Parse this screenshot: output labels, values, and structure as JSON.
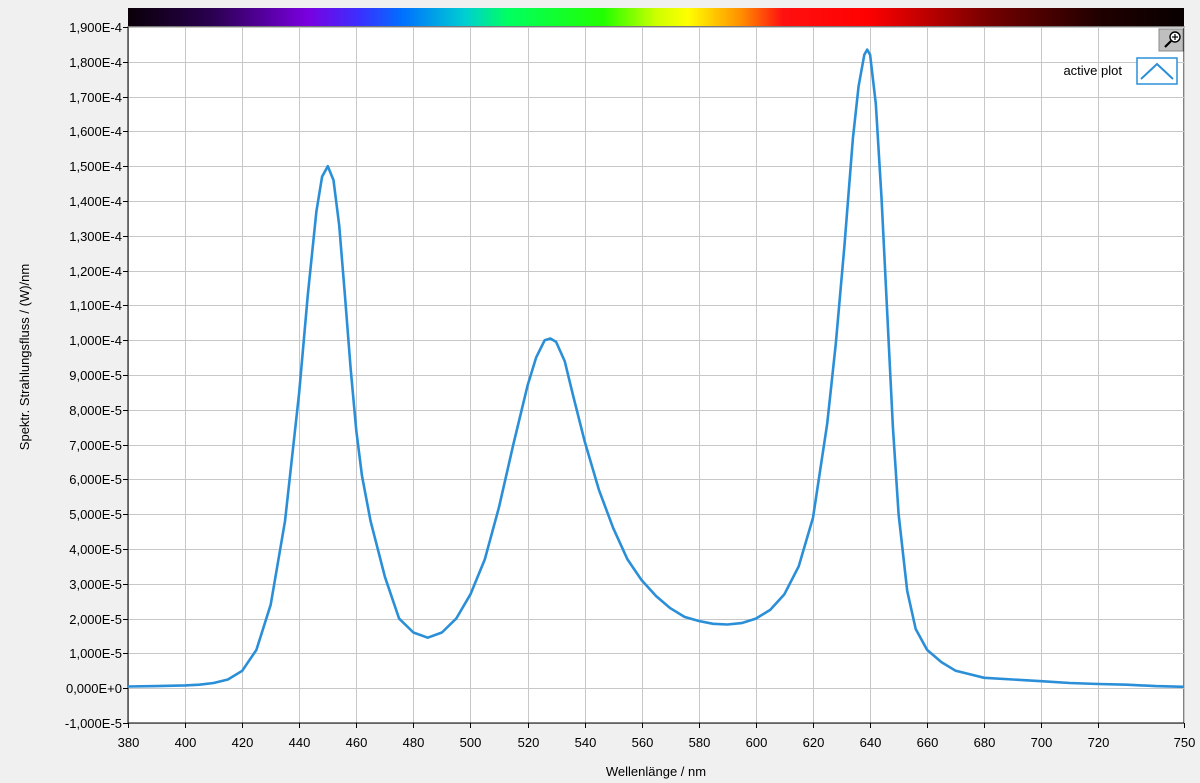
{
  "chart_data": {
    "type": "line",
    "xlabel": "Wellenlänge / nm",
    "ylabel": "Spektr. Strahlungsfluss / (W)/nm",
    "xlim": [
      380,
      750
    ],
    "ylim": [
      -1e-05,
      0.00019
    ],
    "x_ticks": [
      380,
      400,
      420,
      440,
      460,
      480,
      500,
      520,
      540,
      560,
      580,
      600,
      620,
      640,
      660,
      680,
      700,
      720,
      750
    ],
    "x_tick_labels": [
      "380",
      "400",
      "420",
      "440",
      "460",
      "480",
      "500",
      "520",
      "540",
      "560",
      "580",
      "600",
      "620",
      "640",
      "660",
      "680",
      "700",
      "720",
      "750"
    ],
    "y_ticks": [
      -1e-05,
      0,
      1e-05,
      2e-05,
      3e-05,
      4e-05,
      5e-05,
      6e-05,
      7e-05,
      8e-05,
      9e-05,
      0.0001,
      0.00011,
      0.00012,
      0.00013,
      0.00014,
      0.00015,
      0.00016,
      0.00017,
      0.00018,
      0.00019
    ],
    "y_tick_labels": [
      "-1,000E-5",
      "0,000E+0",
      "1,000E-5",
      "2,000E-5",
      "3,000E-5",
      "4,000E-5",
      "5,000E-5",
      "6,000E-5",
      "7,000E-5",
      "8,000E-5",
      "9,000E-5",
      "1,000E-4",
      "1,100E-4",
      "1,200E-4",
      "1,300E-4",
      "1,400E-4",
      "1,500E-4",
      "1,600E-4",
      "1,700E-4",
      "1,800E-4",
      "1,900E-4"
    ],
    "grid": true,
    "legend_placement": "top-right",
    "series": [
      {
        "name": "active plot",
        "color": "#2b8fd8",
        "x": [
          380,
          390,
          400,
          405,
          410,
          415,
          420,
          425,
          430,
          435,
          440,
          443,
          446,
          448,
          450,
          452,
          454,
          456,
          458,
          460,
          462,
          465,
          470,
          475,
          480,
          485,
          490,
          495,
          500,
          505,
          510,
          515,
          520,
          523,
          526,
          528,
          530,
          533,
          536,
          540,
          545,
          550,
          555,
          560,
          565,
          570,
          575,
          580,
          585,
          590,
          595,
          600,
          605,
          610,
          615,
          620,
          625,
          628,
          631,
          634,
          636,
          638,
          639,
          640,
          642,
          644,
          646,
          648,
          650,
          653,
          656,
          660,
          665,
          670,
          675,
          680,
          690,
          700,
          710,
          720,
          730,
          740,
          750
        ],
        "y": [
          5e-07,
          6e-07,
          8e-07,
          1e-06,
          1.5e-06,
          2.5e-06,
          5e-06,
          1.1e-05,
          2.4e-05,
          4.8e-05,
          8.5e-05,
          0.000113,
          0.000137,
          0.000147,
          0.00015,
          0.000146,
          0.000133,
          0.000113,
          9.2e-05,
          7.4e-05,
          6.1e-05,
          4.8e-05,
          3.2e-05,
          2e-05,
          1.6e-05,
          1.45e-05,
          1.6e-05,
          2e-05,
          2.7e-05,
          3.7e-05,
          5.2e-05,
          7e-05,
          8.7e-05,
          9.5e-05,
          0.0001,
          0.0001005,
          9.95e-05,
          9.4e-05,
          8.4e-05,
          7.1e-05,
          5.7e-05,
          4.6e-05,
          3.7e-05,
          3.1e-05,
          2.65e-05,
          2.3e-05,
          2.05e-05,
          1.93e-05,
          1.85e-05,
          1.83e-05,
          1.87e-05,
          2e-05,
          2.25e-05,
          2.7e-05,
          3.5e-05,
          4.9e-05,
          7.6e-05,
          9.9e-05,
          0.000127,
          0.000158,
          0.000173,
          0.000182,
          0.0001835,
          0.000182,
          0.000168,
          0.000141,
          0.000108,
          7.5e-05,
          5e-05,
          2.8e-05,
          1.7e-05,
          1.1e-05,
          7.5e-06,
          5e-06,
          4e-06,
          3e-06,
          2.5e-06,
          2e-06,
          1.5e-06,
          1.2e-06,
          1e-06,
          6e-07,
          4e-07
        ]
      }
    ]
  }
}
